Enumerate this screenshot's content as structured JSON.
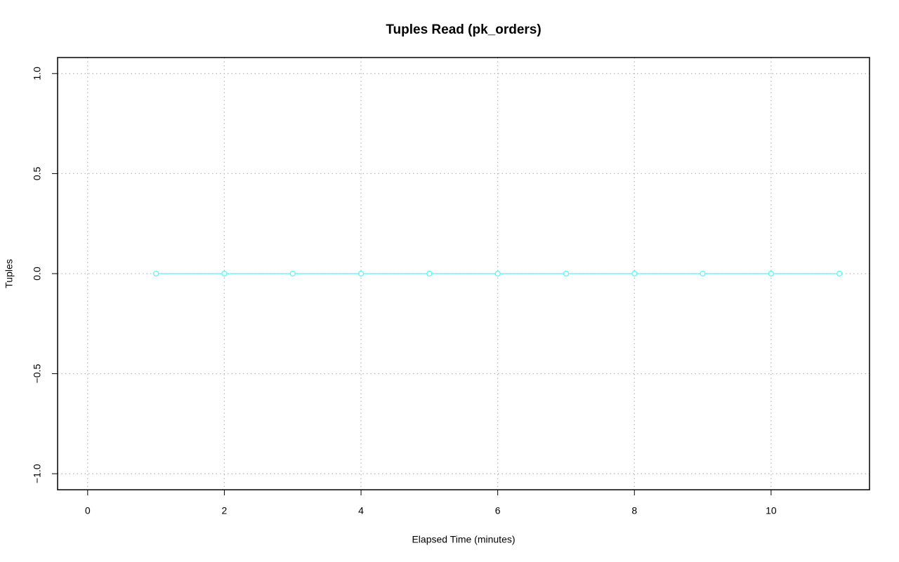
{
  "chart_data": {
    "type": "line",
    "title": "Tuples Read (pk_orders)",
    "x_label": "Elapsed Time (minutes)",
    "y_label": "Tuples",
    "x": [
      1,
      2,
      3,
      4,
      5,
      6,
      7,
      8,
      9,
      10,
      11
    ],
    "values": [
      0,
      0,
      0,
      0,
      0,
      0,
      0,
      0,
      0,
      0,
      0
    ],
    "color": "#5cf5f5",
    "xlim": [
      -0.44,
      11.44
    ],
    "xticks": [
      0,
      2,
      4,
      6,
      8,
      10
    ],
    "ylim": [
      -1.08,
      1.08
    ],
    "yticks": [
      {
        "value": -1,
        "label": "−1.0"
      },
      {
        "value": -0.5,
        "label": "−0.5"
      },
      {
        "value": 0,
        "label": "0.0"
      },
      0.5,
      {
        "value": 1,
        "label": "1.0"
      }
    ],
    "grid": true
  }
}
